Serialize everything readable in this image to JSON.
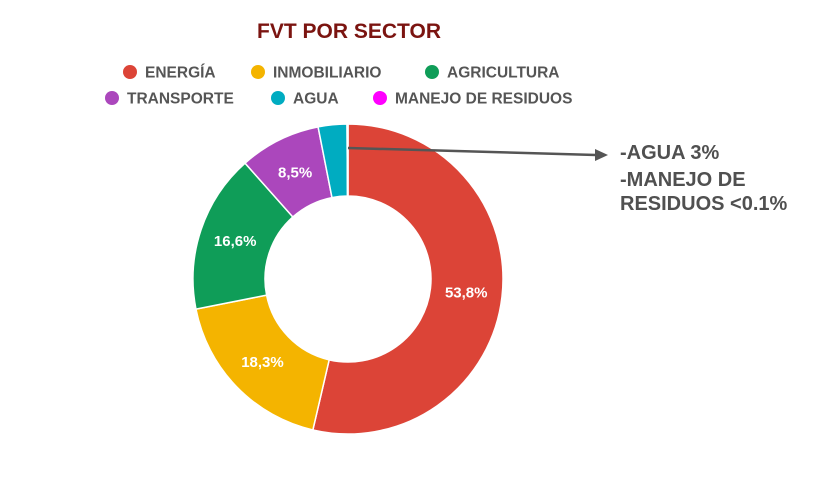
{
  "chart_data": {
    "type": "pie",
    "title": "FVT POR SECTOR",
    "categories": [
      "ENERGÍA",
      "INMOBILIARIO",
      "AGRICULTURA",
      "TRANSPORTE",
      "AGUA",
      "MANEJO DE RESIDUOS"
    ],
    "values": [
      53.8,
      18.3,
      16.6,
      8.5,
      3.0,
      0.1
    ],
    "labels": [
      "53,8%",
      "18,3%",
      "16,6%",
      "8,5%",
      "",
      ""
    ],
    "colors": [
      "#dc4437",
      "#f4b400",
      "#0f9d58",
      "#ab47bc",
      "#00acc1",
      "#ff00ff"
    ],
    "donut": true,
    "legend": "top",
    "annotation": {
      "lines": [
        "-AGUA 3%",
        "-MANEJO DE",
        "RESIDUOS <0.1%"
      ]
    }
  }
}
